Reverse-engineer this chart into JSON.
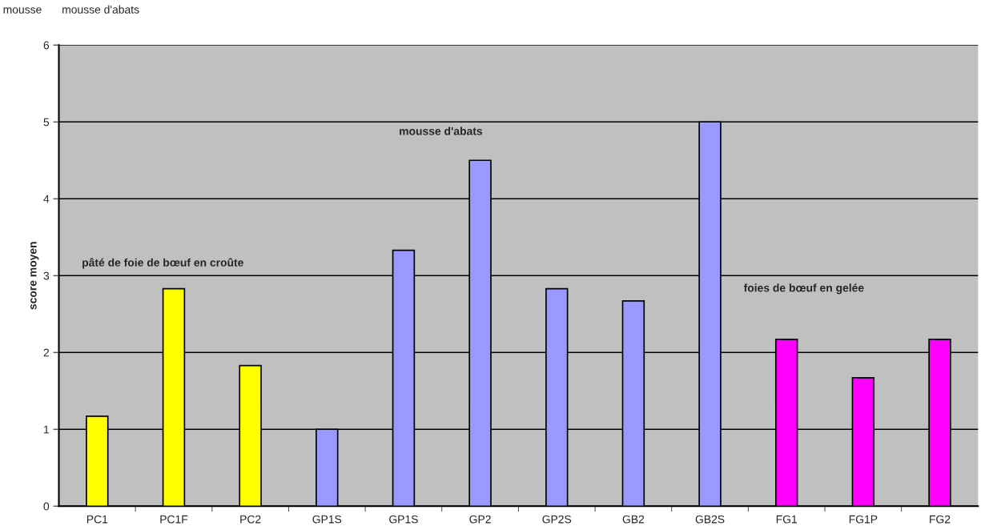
{
  "chart_data": {
    "type": "bar",
    "categories": [
      "PC1",
      "PC1F",
      "PC2",
      "GP1S",
      "GP1S",
      "GP2",
      "GP2S",
      "GB2",
      "GB2S",
      "FG1",
      "FG1P",
      "FG2"
    ],
    "values": [
      1.17,
      2.83,
      1.83,
      1.0,
      3.33,
      4.5,
      2.83,
      2.67,
      5.0,
      2.17,
      1.67,
      2.17
    ],
    "colors": [
      "#ffff00",
      "#ffff00",
      "#ffff00",
      "#9999ff",
      "#9999ff",
      "#9999ff",
      "#9999ff",
      "#9999ff",
      "#9999ff",
      "#ff00ff",
      "#ff00ff",
      "#ff00ff"
    ],
    "ylabel": "score moyen",
    "ylim": [
      0,
      6
    ],
    "yticks": [
      0,
      1,
      2,
      3,
      4,
      5,
      6
    ],
    "grid": "y",
    "annotations": [
      "pâté de foie de bœuf en croûte",
      "mousse d'abats",
      "foies de bœuf en gelée",
      "mousse",
      "mousse d'abats"
    ]
  }
}
